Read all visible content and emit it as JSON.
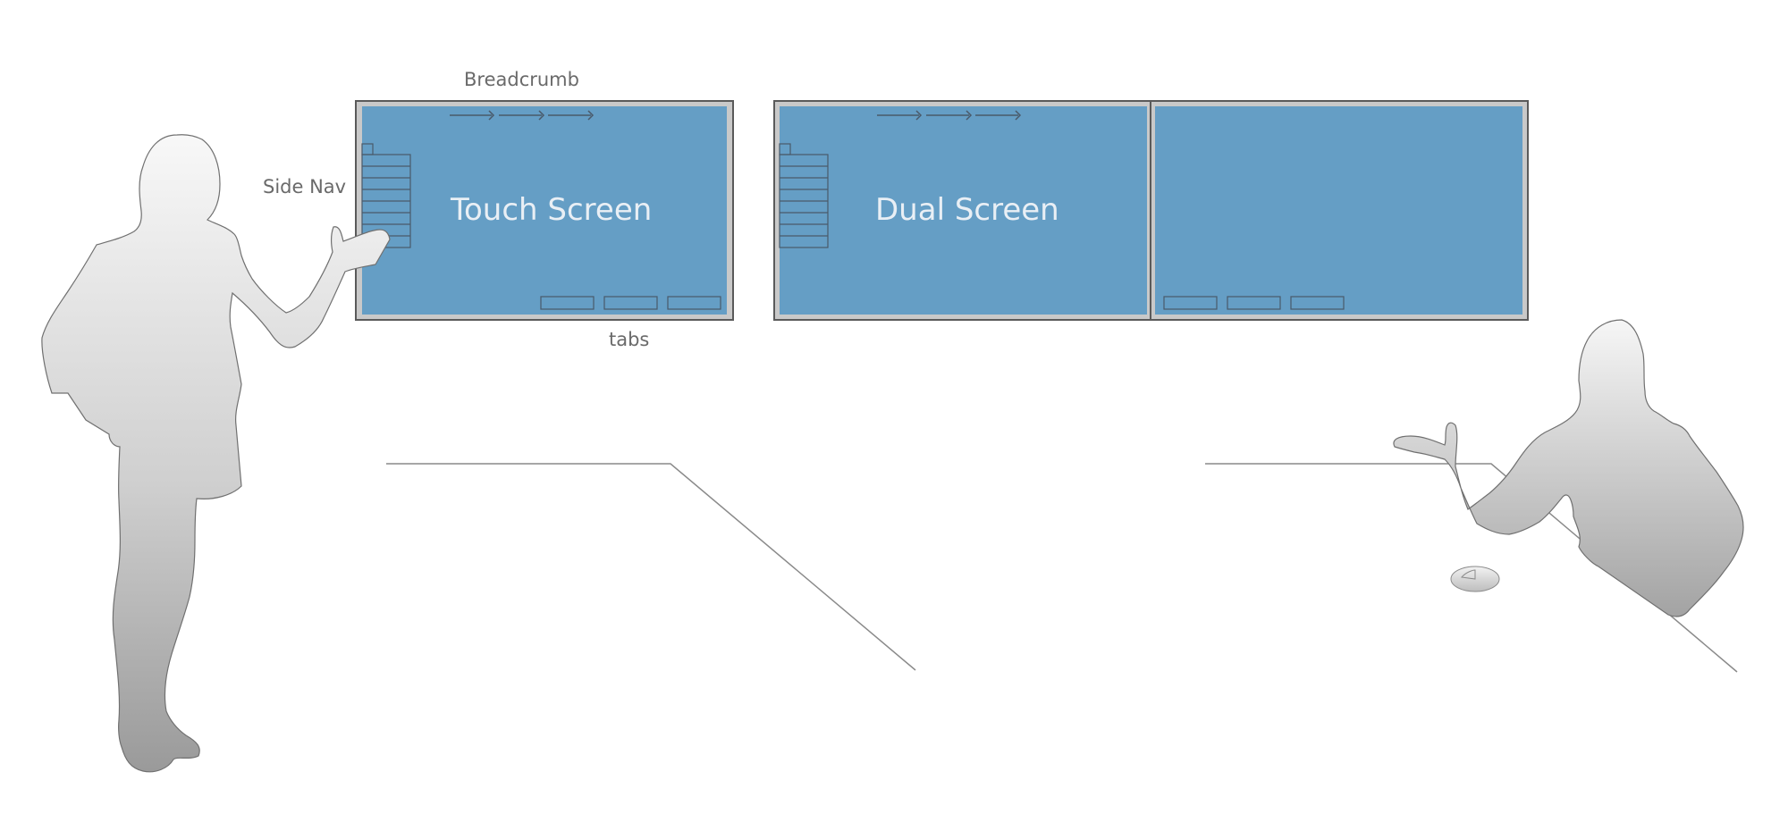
{
  "labels": {
    "breadcrumb": "Breadcrumb",
    "side_nav": "Side Nav",
    "tabs": "tabs"
  },
  "screens": {
    "touch_title": "Touch Screen",
    "dual_title": "Dual Screen"
  },
  "colors": {
    "screen_fill": "#659ec5",
    "bezel": "#c9c9c9",
    "frame_stroke": "#5a5a5a",
    "widget_stroke": "#4a5a6a",
    "line": "#8a8a8a",
    "label": "#6a6a6a",
    "screen_text": "#e9eff5"
  }
}
